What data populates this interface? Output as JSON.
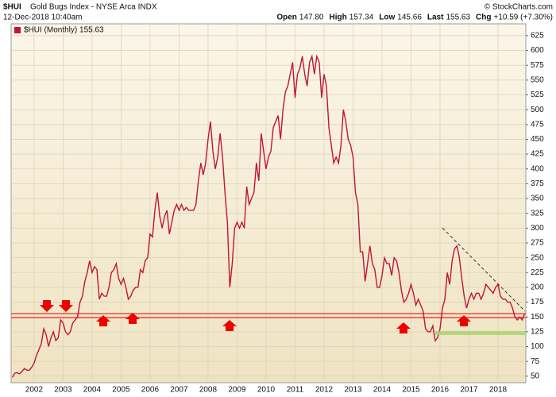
{
  "header": {
    "symbol": "$HUI",
    "name": "Gold Bugs Index - NYSE Arca INDX",
    "date": "12-Dec-2018 10:40am",
    "copyright": "© StockCharts.com",
    "quote": [
      {
        "label": "Open",
        "value": "147.80"
      },
      {
        "label": "High",
        "value": "157.34"
      },
      {
        "label": "Low",
        "value": "145.66"
      },
      {
        "label": "Last",
        "value": "155.63"
      },
      {
        "label": "Chg",
        "value": "+10.59 (+7.30%)"
      }
    ]
  },
  "chart_data": {
    "type": "line",
    "categories": [
      null,
      null,
      null,
      null,
      null,
      null,
      null,
      null,
      null,
      "2002",
      null,
      null,
      null,
      null,
      null,
      null,
      null,
      null,
      null,
      null,
      null,
      "2003",
      null,
      null,
      null,
      null,
      null,
      null,
      null,
      null,
      null,
      null,
      null,
      "2004",
      null,
      null,
      null,
      null,
      null,
      null,
      null,
      null,
      null,
      null,
      null,
      "2005",
      null,
      null,
      null,
      null,
      null,
      null,
      null,
      null,
      null,
      null,
      null,
      "2006",
      null,
      null,
      null,
      null,
      null,
      null,
      null,
      null,
      null,
      null,
      null,
      "2007",
      null,
      null,
      null,
      null,
      null,
      null,
      null,
      null,
      null,
      null,
      null,
      "2008",
      null,
      null,
      null,
      null,
      null,
      null,
      null,
      null,
      null,
      null,
      null,
      "2009",
      null,
      null,
      null,
      null,
      null,
      null,
      null,
      null,
      null,
      null,
      null,
      "2010",
      null,
      null,
      null,
      null,
      null,
      null,
      null,
      null,
      null,
      null,
      null,
      "2011",
      null,
      null,
      null,
      null,
      null,
      null,
      null,
      null,
      null,
      null,
      null,
      "2012",
      null,
      null,
      null,
      null,
      null,
      null,
      null,
      null,
      null,
      null,
      null,
      "2013",
      null,
      null,
      null,
      null,
      null,
      null,
      null,
      null,
      null,
      null,
      null,
      "2014",
      null,
      null,
      null,
      null,
      null,
      null,
      null,
      null,
      null,
      null,
      null,
      "2015",
      null,
      null,
      null,
      null,
      null,
      null,
      null,
      null,
      null,
      null,
      null,
      "2016",
      null,
      null,
      null,
      null,
      null,
      null,
      null,
      null,
      null,
      null,
      null,
      "2017",
      null,
      null,
      null,
      null,
      null,
      null,
      null,
      null,
      null,
      null,
      null,
      "2018",
      null,
      null,
      null,
      null,
      null,
      null,
      null,
      null,
      null,
      null,
      null
    ],
    "series": [
      {
        "name": "$HUI (Monthly) 155.63",
        "color": "#c0143c",
        "values": [
          48,
          55,
          56,
          54,
          58,
          63,
          60,
          60,
          65,
          72,
          85,
          95,
          105,
          130,
          120,
          100,
          115,
          125,
          110,
          115,
          145,
          140,
          125,
          120,
          125,
          140,
          145,
          150,
          175,
          185,
          210,
          225,
          245,
          225,
          235,
          230,
          180,
          190,
          185,
          185,
          200,
          225,
          230,
          240,
          215,
          205,
          215,
          200,
          180,
          185,
          195,
          200,
          200,
          230,
          225,
          245,
          250,
          290,
          285,
          330,
          360,
          320,
          300,
          320,
          330,
          290,
          310,
          330,
          340,
          330,
          340,
          330,
          335,
          330,
          330,
          330,
          340,
          380,
          410,
          390,
          410,
          450,
          480,
          430,
          400,
          420,
          460,
          420,
          360,
          310,
          200,
          240,
          300,
          310,
          300,
          310,
          300,
          370,
          340,
          350,
          360,
          410,
          380,
          460,
          430,
          400,
          420,
          430,
          470,
          480,
          490,
          450,
          500,
          530,
          540,
          560,
          580,
          520,
          560,
          570,
          590,
          560,
          540,
          580,
          590,
          560,
          590,
          580,
          520,
          560,
          540,
          470,
          440,
          410,
          420,
          410,
          440,
          500,
          480,
          450,
          440,
          420,
          360,
          340,
          260,
          260,
          210,
          240,
          270,
          240,
          230,
          200,
          200,
          220,
          250,
          240,
          240,
          220,
          250,
          245,
          225,
          195,
          175,
          180,
          190,
          205,
          190,
          170,
          180,
          170,
          160,
          130,
          125,
          125,
          135,
          110,
          115,
          130,
          165,
          180,
          225,
          205,
          245,
          265,
          270,
          250,
          215,
          185,
          165,
          180,
          190,
          180,
          190,
          190,
          180,
          190,
          205,
          200,
          195,
          190,
          200,
          205,
          185,
          180,
          180,
          175,
          175,
          165,
          150,
          145,
          150,
          145,
          155.63
        ]
      }
    ],
    "ylim": [
      39,
      645
    ],
    "yticks": [
      50,
      75,
      100,
      125,
      150,
      175,
      200,
      225,
      250,
      275,
      300,
      325,
      350,
      375,
      400,
      425,
      450,
      475,
      500,
      525,
      550,
      575,
      600,
      625
    ],
    "grid": true
  }
}
